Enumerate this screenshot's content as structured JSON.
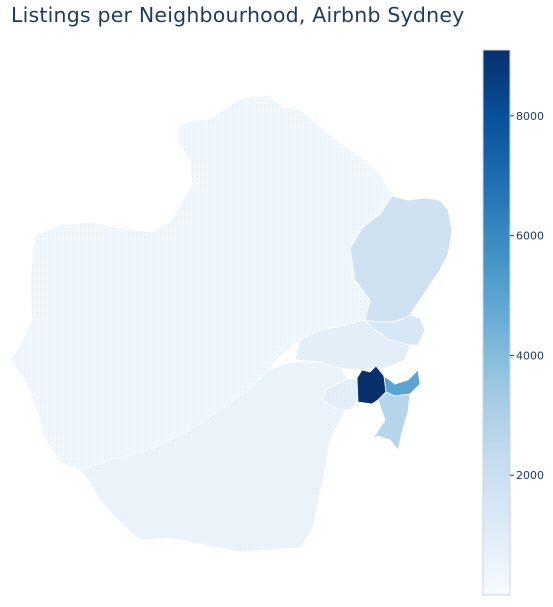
{
  "title": "Listings per Neighbourhood, Airbnb Sydney",
  "colorbar": {
    "range": [
      0,
      9100
    ],
    "ticks": [
      {
        "value": 2000,
        "label": "2000"
      },
      {
        "value": 4000,
        "label": "4000"
      },
      {
        "value": 6000,
        "label": "6000"
      },
      {
        "value": 8000,
        "label": "8000"
      }
    ],
    "colormap": "Blues",
    "stops": [
      "#f7fbff",
      "#deebf7",
      "#c6dbef",
      "#9ecae1",
      "#6baed6",
      "#4292c6",
      "#2171b5",
      "#08519c",
      "#08306b"
    ]
  },
  "map": {
    "outline_color": "#ffffff",
    "regions": [
      {
        "id": "north-west-and-west",
        "value": 300
      },
      {
        "id": "northern-beaches",
        "value": 1800
      },
      {
        "id": "lower-north-shore",
        "value": 1400
      },
      {
        "id": "north-shore-central",
        "value": 900
      },
      {
        "id": "inner-west",
        "value": 900
      },
      {
        "id": "sydney-city",
        "value": 9100
      },
      {
        "id": "waverley",
        "value": 5000
      },
      {
        "id": "randwick",
        "value": 2700
      },
      {
        "id": "south",
        "value": 500
      }
    ]
  }
}
